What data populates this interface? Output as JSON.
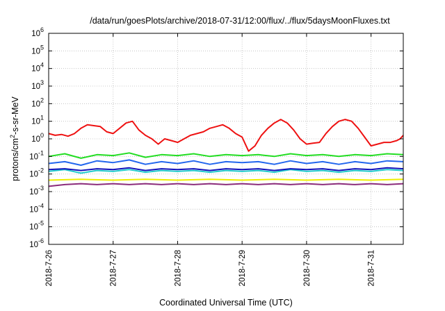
{
  "chart_data": {
    "type": "line",
    "title": "/data/run/goesPlots/archive/2018-07-31/12:00/flux/../flux/5daysMoonFluxes.txt",
    "xlabel": "Coordinated Universal Time (UTC)",
    "ylabel_parts": {
      "pre": "protons/cm",
      "sup": "2",
      "post": "-s-sr-MeV"
    },
    "x_ticks": [
      "2018-7-26",
      "2018-7-27",
      "2018-7-28",
      "2018-7-29",
      "2018-7-30",
      "2018-7-31"
    ],
    "xlim_days": [
      0,
      5.5
    ],
    "y_scale": "log",
    "ylim_exp": [
      -6,
      6
    ],
    "y_tick_exps": [
      -6,
      -5,
      -4,
      -3,
      -2,
      -1,
      0,
      1,
      2,
      3,
      4,
      5,
      6
    ],
    "grid": true,
    "legend": "none",
    "series": [
      {
        "color": "#ee1111",
        "points": [
          [
            0,
            0.3
          ],
          [
            0.1,
            0.2
          ],
          [
            0.2,
            0.25
          ],
          [
            0.3,
            0.15
          ],
          [
            0.4,
            0.3
          ],
          [
            0.5,
            0.6
          ],
          [
            0.6,
            0.8
          ],
          [
            0.7,
            0.75
          ],
          [
            0.8,
            0.7
          ],
          [
            0.9,
            0.4
          ],
          [
            1.0,
            0.3
          ],
          [
            1.1,
            0.6
          ],
          [
            1.2,
            0.9
          ],
          [
            1.3,
            1.0
          ],
          [
            1.4,
            0.5
          ],
          [
            1.5,
            0.2
          ],
          [
            1.6,
            0.0
          ],
          [
            1.7,
            -0.3
          ],
          [
            1.8,
            0.0
          ],
          [
            1.9,
            -0.1
          ],
          [
            2.0,
            -0.2
          ],
          [
            2.1,
            0.0
          ],
          [
            2.2,
            0.2
          ],
          [
            2.3,
            0.3
          ],
          [
            2.4,
            0.4
          ],
          [
            2.5,
            0.6
          ],
          [
            2.6,
            0.7
          ],
          [
            2.7,
            0.8
          ],
          [
            2.8,
            0.6
          ],
          [
            2.9,
            0.3
          ],
          [
            3.0,
            0.1
          ],
          [
            3.05,
            -0.3
          ],
          [
            3.1,
            -0.7
          ],
          [
            3.2,
            -0.4
          ],
          [
            3.3,
            0.2
          ],
          [
            3.4,
            0.6
          ],
          [
            3.5,
            0.9
          ],
          [
            3.6,
            1.1
          ],
          [
            3.7,
            0.9
          ],
          [
            3.8,
            0.5
          ],
          [
            3.9,
            0.0
          ],
          [
            4.0,
            -0.3
          ],
          [
            4.1,
            -0.25
          ],
          [
            4.2,
            -0.2
          ],
          [
            4.3,
            0.3
          ],
          [
            4.4,
            0.7
          ],
          [
            4.5,
            1.0
          ],
          [
            4.6,
            1.1
          ],
          [
            4.7,
            1.0
          ],
          [
            4.8,
            0.6
          ],
          [
            4.9,
            0.1
          ],
          [
            5.0,
            -0.4
          ],
          [
            5.1,
            -0.3
          ],
          [
            5.2,
            -0.2
          ],
          [
            5.3,
            -0.2
          ],
          [
            5.4,
            -0.1
          ],
          [
            5.45,
            0.0
          ],
          [
            5.5,
            0.2
          ]
        ]
      },
      {
        "color": "#22dd22",
        "points": [
          [
            0,
            -1.0
          ],
          [
            0.25,
            -0.85
          ],
          [
            0.5,
            -1.1
          ],
          [
            0.75,
            -0.9
          ],
          [
            1.0,
            -0.95
          ],
          [
            1.25,
            -0.8
          ],
          [
            1.5,
            -1.05
          ],
          [
            1.75,
            -0.9
          ],
          [
            2.0,
            -0.95
          ],
          [
            2.25,
            -0.85
          ],
          [
            2.5,
            -1.0
          ],
          [
            2.75,
            -0.9
          ],
          [
            3.0,
            -0.95
          ],
          [
            3.25,
            -0.9
          ],
          [
            3.5,
            -1.0
          ],
          [
            3.75,
            -0.85
          ],
          [
            4.0,
            -0.95
          ],
          [
            4.25,
            -0.9
          ],
          [
            4.5,
            -1.0
          ],
          [
            4.75,
            -0.9
          ],
          [
            5.0,
            -0.95
          ],
          [
            5.25,
            -0.85
          ],
          [
            5.5,
            -0.9
          ]
        ]
      },
      {
        "color": "#2266ee",
        "points": [
          [
            0,
            -1.4
          ],
          [
            0.25,
            -1.3
          ],
          [
            0.5,
            -1.5
          ],
          [
            0.75,
            -1.25
          ],
          [
            1.0,
            -1.35
          ],
          [
            1.25,
            -1.2
          ],
          [
            1.5,
            -1.45
          ],
          [
            1.75,
            -1.3
          ],
          [
            2.0,
            -1.4
          ],
          [
            2.25,
            -1.25
          ],
          [
            2.5,
            -1.45
          ],
          [
            2.75,
            -1.3
          ],
          [
            3.0,
            -1.35
          ],
          [
            3.25,
            -1.3
          ],
          [
            3.5,
            -1.45
          ],
          [
            3.75,
            -1.25
          ],
          [
            4.0,
            -1.4
          ],
          [
            4.25,
            -1.3
          ],
          [
            4.5,
            -1.45
          ],
          [
            4.75,
            -1.3
          ],
          [
            5.0,
            -1.4
          ],
          [
            5.25,
            -1.25
          ],
          [
            5.5,
            -1.3
          ]
        ]
      },
      {
        "color": "#22cccc",
        "points": [
          [
            0,
            -1.85
          ],
          [
            0.25,
            -1.75
          ],
          [
            0.5,
            -1.95
          ],
          [
            0.75,
            -1.8
          ],
          [
            1.0,
            -1.85
          ],
          [
            1.25,
            -1.75
          ],
          [
            1.5,
            -1.9
          ],
          [
            1.75,
            -1.8
          ],
          [
            2.0,
            -1.85
          ],
          [
            2.25,
            -1.8
          ],
          [
            2.5,
            -1.9
          ],
          [
            2.75,
            -1.8
          ],
          [
            3.0,
            -1.85
          ],
          [
            3.25,
            -1.8
          ],
          [
            3.5,
            -1.9
          ],
          [
            3.75,
            -1.75
          ],
          [
            4.0,
            -1.85
          ],
          [
            4.25,
            -1.8
          ],
          [
            4.5,
            -1.9
          ],
          [
            4.75,
            -1.8
          ],
          [
            5.0,
            -1.85
          ],
          [
            5.25,
            -1.75
          ],
          [
            5.5,
            -1.8
          ]
        ]
      },
      {
        "color": "#1111bb",
        "points": [
          [
            0,
            -1.75
          ],
          [
            0.25,
            -1.7
          ],
          [
            0.5,
            -1.8
          ],
          [
            0.75,
            -1.7
          ],
          [
            1.0,
            -1.75
          ],
          [
            1.25,
            -1.65
          ],
          [
            1.5,
            -1.8
          ],
          [
            1.75,
            -1.7
          ],
          [
            2.0,
            -1.75
          ],
          [
            2.25,
            -1.7
          ],
          [
            2.5,
            -1.8
          ],
          [
            2.75,
            -1.7
          ],
          [
            3.0,
            -1.75
          ],
          [
            3.25,
            -1.7
          ],
          [
            3.5,
            -1.8
          ],
          [
            3.75,
            -1.7
          ],
          [
            4.0,
            -1.75
          ],
          [
            4.25,
            -1.7
          ],
          [
            4.5,
            -1.8
          ],
          [
            4.75,
            -1.7
          ],
          [
            5.0,
            -1.75
          ],
          [
            5.25,
            -1.65
          ],
          [
            5.5,
            -1.7
          ]
        ]
      },
      {
        "color": "#eeee00",
        "points": [
          [
            0,
            -2.35
          ],
          [
            0.5,
            -2.3
          ],
          [
            1.0,
            -2.35
          ],
          [
            1.5,
            -2.3
          ],
          [
            2.0,
            -2.35
          ],
          [
            2.5,
            -2.3
          ],
          [
            3.0,
            -2.35
          ],
          [
            3.5,
            -2.3
          ],
          [
            4.0,
            -2.35
          ],
          [
            4.5,
            -2.3
          ],
          [
            5.0,
            -2.35
          ],
          [
            5.5,
            -2.3
          ]
        ]
      },
      {
        "color": "#8b2b7a",
        "points": [
          [
            0,
            -2.7
          ],
          [
            0.25,
            -2.6
          ],
          [
            0.5,
            -2.55
          ],
          [
            0.75,
            -2.6
          ],
          [
            1.0,
            -2.55
          ],
          [
            1.25,
            -2.6
          ],
          [
            1.5,
            -2.55
          ],
          [
            1.75,
            -2.6
          ],
          [
            2.0,
            -2.55
          ],
          [
            2.25,
            -2.6
          ],
          [
            2.5,
            -2.55
          ],
          [
            2.75,
            -2.6
          ],
          [
            3.0,
            -2.55
          ],
          [
            3.25,
            -2.6
          ],
          [
            3.5,
            -2.55
          ],
          [
            3.75,
            -2.6
          ],
          [
            4.0,
            -2.55
          ],
          [
            4.25,
            -2.6
          ],
          [
            4.5,
            -2.55
          ],
          [
            4.75,
            -2.6
          ],
          [
            5.0,
            -2.55
          ],
          [
            5.25,
            -2.6
          ],
          [
            5.5,
            -2.55
          ]
        ]
      }
    ]
  }
}
